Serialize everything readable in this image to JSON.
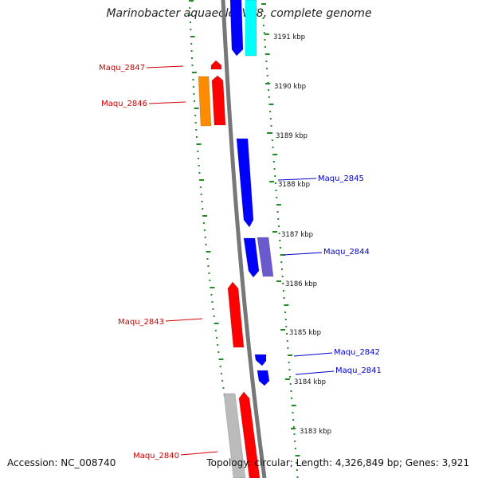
{
  "title": "Marinobacter aquaeolei VT8, complete genome",
  "footer": {
    "accession": "Accession: NC_008740",
    "topology": "Topology: circular; Length: 4,326,849 bp; Genes: 3,921"
  },
  "ticks": [
    "3191 kbp",
    "3190 kbp",
    "3189 kbp",
    "3188 kbp",
    "3187 kbp",
    "3186 kbp",
    "3185 kbp",
    "3184 kbp",
    "3183 kbp"
  ],
  "genes": [
    {
      "label": "Maqu_2847",
      "strand": "minus"
    },
    {
      "label": "Maqu_2846",
      "strand": "minus"
    },
    {
      "label": "Maqu_2845",
      "strand": "plus"
    },
    {
      "label": "Maqu_2844",
      "strand": "plus"
    },
    {
      "label": "Maqu_2843",
      "strand": "minus"
    },
    {
      "label": "Maqu_2842",
      "strand": "plus"
    },
    {
      "label": "Maqu_2841",
      "strand": "plus"
    },
    {
      "label": "Maqu_2840",
      "strand": "minus"
    }
  ],
  "colors": {
    "plus_label": "#0000cc",
    "minus_label": "#cc0000",
    "cds_plus": "#0000ff",
    "cds_minus": "#ff0000",
    "cds_light_blue": "#6a5acd",
    "cds_cyan": "#00ffff",
    "cds_orange": "#ff8c00",
    "cds_gray": "#bbbbbb",
    "backbone": "#888888",
    "dotted": "#228b22"
  }
}
